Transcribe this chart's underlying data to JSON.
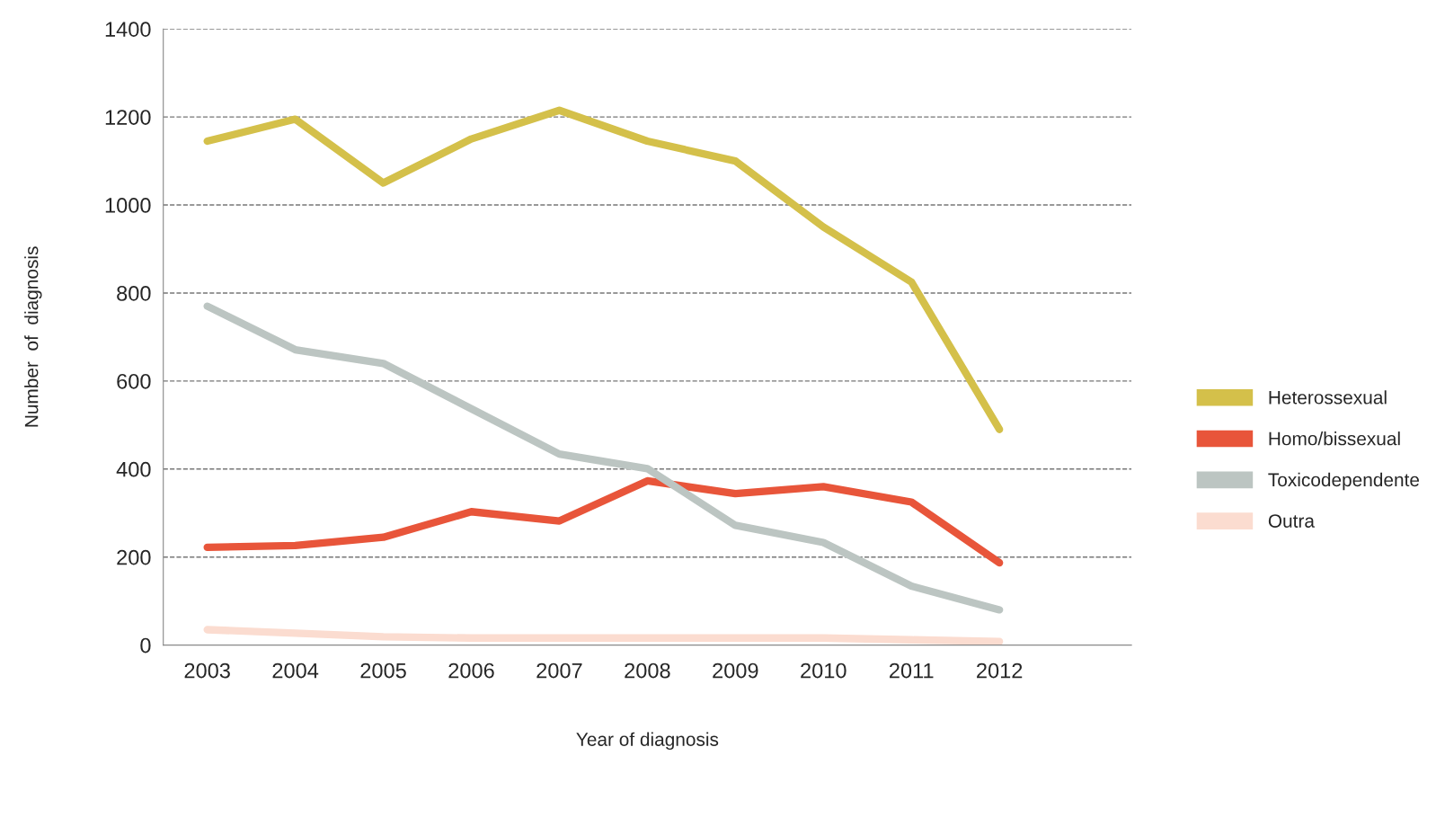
{
  "chart_data": {
    "type": "line",
    "xlabel": "Year of diagnosis",
    "ylabel": "Number  of  diagnosis",
    "categories": [
      "2003",
      "2004",
      "2005",
      "2006",
      "2007",
      "2008",
      "2009",
      "2010",
      "2011",
      "2012"
    ],
    "series": [
      {
        "name": "Heterossexual",
        "color": "#d4c04a",
        "values": [
          1145,
          1195,
          1050,
          1150,
          1215,
          1145,
          1100,
          950,
          825,
          490
        ]
      },
      {
        "name": "Homo/bissexual",
        "color": "#e8553a",
        "values": [
          222,
          226,
          245,
          303,
          282,
          373,
          344,
          360,
          325,
          187
        ]
      },
      {
        "name": "Toxicodependente",
        "color": "#bcc5c2",
        "values": [
          770,
          671,
          640,
          537,
          434,
          401,
          272,
          233,
          134,
          80
        ]
      },
      {
        "name": "Outra",
        "color": "#fbdcd0",
        "values": [
          35,
          27,
          19,
          16,
          16,
          16,
          16,
          16,
          12,
          8
        ]
      }
    ],
    "ylim": [
      0,
      1400
    ],
    "yticks": [
      0,
      200,
      400,
      600,
      800,
      1000,
      1200,
      1400
    ],
    "grid": "y",
    "legend": "right",
    "marker": "none",
    "line_style": "solid"
  }
}
